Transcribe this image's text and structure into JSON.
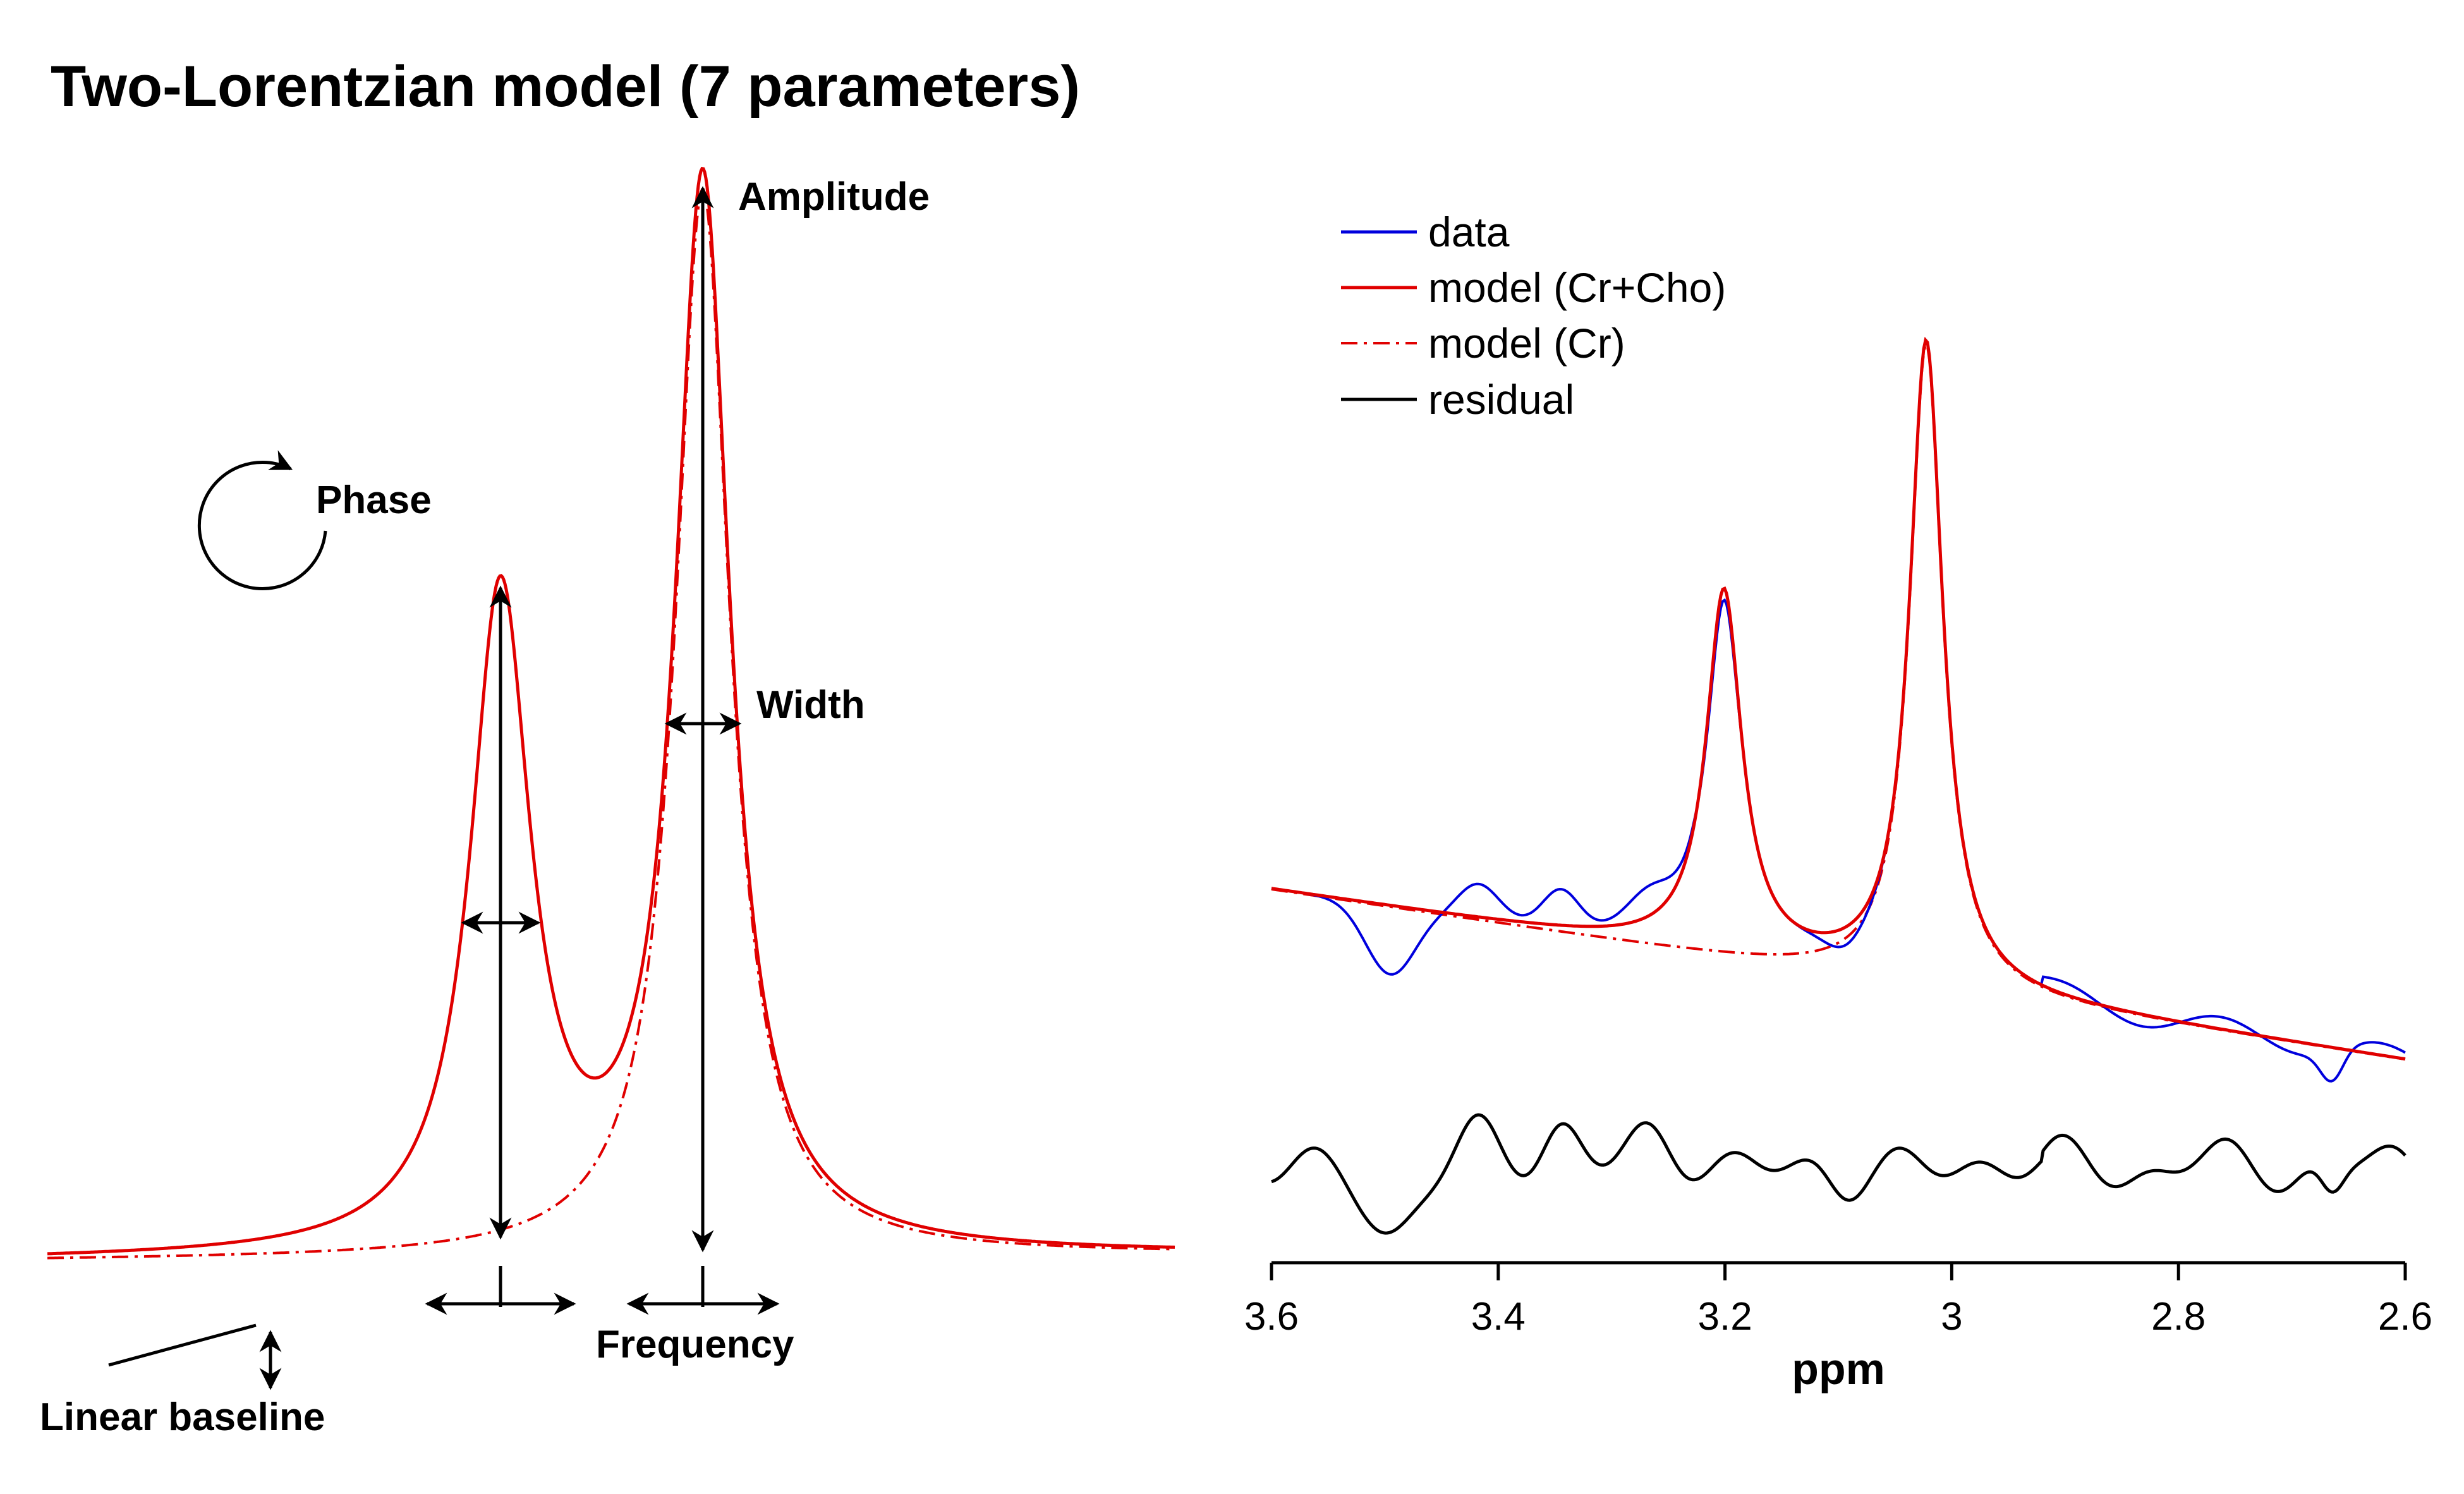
{
  "title": "Two-Lorentzian model (7 parameters)",
  "colors": {
    "data": "#0000dd",
    "model": "#e00000",
    "residual": "#000000",
    "annot": "#000000"
  },
  "icons": {
    "phase": "circular-arrow-icon",
    "double_arrow": "double-arrow-icon",
    "baseline": "sloped-line-icon"
  },
  "schematic": {
    "labels": {
      "amplitude": "Amplitude",
      "width": "Width",
      "phase": "Phase",
      "frequency": "Frequency",
      "baseline": "Linear baseline"
    }
  },
  "chart_data": {
    "type": "line",
    "xlabel": "ppm",
    "x_reversed": true,
    "xlim": [
      3.6,
      2.6
    ],
    "xticks": [
      3.6,
      3.4,
      3.2,
      3.0,
      2.8,
      2.6
    ],
    "xtick_labels": [
      "3.6",
      "3.4",
      "3.2",
      "3",
      "2.8",
      "2.6"
    ],
    "legend_position": "top-left",
    "series": [
      {
        "name": "data",
        "style": "solid",
        "color": "#0000dd"
      },
      {
        "name": "model (Cr+Cho)",
        "style": "solid",
        "color": "#e00000"
      },
      {
        "name": "model (Cr)",
        "style": "dash-dot",
        "color": "#e00000"
      },
      {
        "name": "residual",
        "style": "solid",
        "color": "#000000"
      }
    ]
  }
}
